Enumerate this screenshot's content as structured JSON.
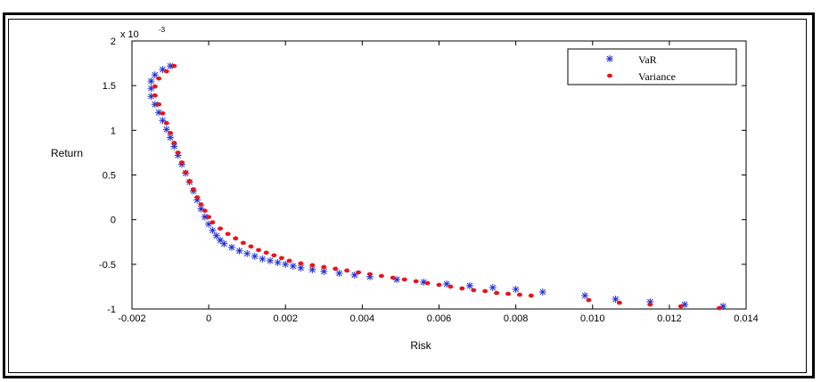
{
  "chart_data": {
    "type": "scatter",
    "xlabel": "Risk",
    "ylabel": "Return",
    "y_multiplier_label": "x 10",
    "y_multiplier_exponent": "-3",
    "xlim": [
      -0.002,
      0.014
    ],
    "ylim": [
      -1,
      2
    ],
    "x_ticks": [
      "-0.002",
      "0",
      "0.002",
      "0.004",
      "0.006",
      "0.008",
      "0.010",
      "0.012",
      "0.014"
    ],
    "x_tick_values": [
      -0.002,
      0,
      0.002,
      0.004,
      0.006,
      0.008,
      0.01,
      0.012,
      0.014
    ],
    "y_ticks": [
      "-1",
      "-0.5",
      "0",
      "0.5",
      "1",
      "1.5",
      "2"
    ],
    "y_tick_values": [
      -1,
      -0.5,
      0,
      0.5,
      1,
      1.5,
      2
    ],
    "legend_position": "top-right",
    "grid": false,
    "series": [
      {
        "name": "VaR",
        "marker": "asterisk",
        "color": "#1f2fd0",
        "x": [
          -0.001,
          -0.0012,
          -0.0014,
          -0.0015,
          -0.0015,
          -0.0015,
          -0.0014,
          -0.0013,
          -0.0012,
          -0.0011,
          -0.001,
          -0.0009,
          -0.0008,
          -0.0007,
          -0.0006,
          -0.0005,
          -0.0004,
          -0.0003,
          -0.0002,
          -0.0001,
          0.0,
          0.0001,
          0.0002,
          0.0003,
          0.0004,
          0.0006,
          0.0008,
          0.001,
          0.0012,
          0.0014,
          0.0016,
          0.0018,
          0.002,
          0.0022,
          0.0024,
          0.0027,
          0.003,
          0.0034,
          0.0038,
          0.0042,
          0.0049,
          0.0056,
          0.0062,
          0.0068,
          0.0074,
          0.008,
          0.0087,
          0.0098,
          0.0106,
          0.0115,
          0.0124,
          0.0134
        ],
        "y": [
          1.72,
          1.68,
          1.62,
          1.55,
          1.47,
          1.38,
          1.29,
          1.2,
          1.11,
          1.01,
          0.92,
          0.82,
          0.72,
          0.62,
          0.52,
          0.42,
          0.32,
          0.22,
          0.12,
          0.03,
          -0.05,
          -0.12,
          -0.18,
          -0.23,
          -0.27,
          -0.31,
          -0.35,
          -0.38,
          -0.41,
          -0.44,
          -0.46,
          -0.48,
          -0.5,
          -0.52,
          -0.54,
          -0.56,
          -0.58,
          -0.6,
          -0.62,
          -0.64,
          -0.67,
          -0.7,
          -0.72,
          -0.74,
          -0.76,
          -0.78,
          -0.81,
          -0.85,
          -0.89,
          -0.92,
          -0.95,
          -0.97
        ]
      },
      {
        "name": "Variance",
        "marker": "dot",
        "color": "#e8141c",
        "x": [
          -0.0009,
          -0.0011,
          -0.0013,
          -0.0014,
          -0.0014,
          -0.0013,
          -0.0012,
          -0.0011,
          -0.001,
          -0.0009,
          -0.0008,
          -0.0007,
          -0.0006,
          -0.0005,
          -0.0004,
          -0.0003,
          -0.0002,
          -0.0001,
          0.0,
          0.0001,
          0.0003,
          0.0005,
          0.0007,
          0.0009,
          0.0011,
          0.0013,
          0.0015,
          0.0017,
          0.0019,
          0.0021,
          0.0024,
          0.0027,
          0.003,
          0.0033,
          0.0036,
          0.0039,
          0.0042,
          0.0045,
          0.0048,
          0.0051,
          0.0054,
          0.0057,
          0.006,
          0.0063,
          0.0066,
          0.0069,
          0.0072,
          0.0075,
          0.0078,
          0.0081,
          0.0084,
          0.0099,
          0.0107,
          0.0115,
          0.0123,
          0.0133
        ],
        "y": [
          1.72,
          1.66,
          1.58,
          1.49,
          1.39,
          1.29,
          1.19,
          1.08,
          0.97,
          0.86,
          0.75,
          0.64,
          0.53,
          0.43,
          0.34,
          0.25,
          0.17,
          0.1,
          0.03,
          -0.03,
          -0.1,
          -0.16,
          -0.21,
          -0.26,
          -0.3,
          -0.34,
          -0.37,
          -0.4,
          -0.43,
          -0.46,
          -0.49,
          -0.51,
          -0.53,
          -0.55,
          -0.57,
          -0.59,
          -0.61,
          -0.63,
          -0.65,
          -0.67,
          -0.69,
          -0.71,
          -0.73,
          -0.75,
          -0.77,
          -0.79,
          -0.8,
          -0.82,
          -0.83,
          -0.84,
          -0.85,
          -0.9,
          -0.93,
          -0.95,
          -0.97,
          -0.99
        ]
      }
    ]
  }
}
